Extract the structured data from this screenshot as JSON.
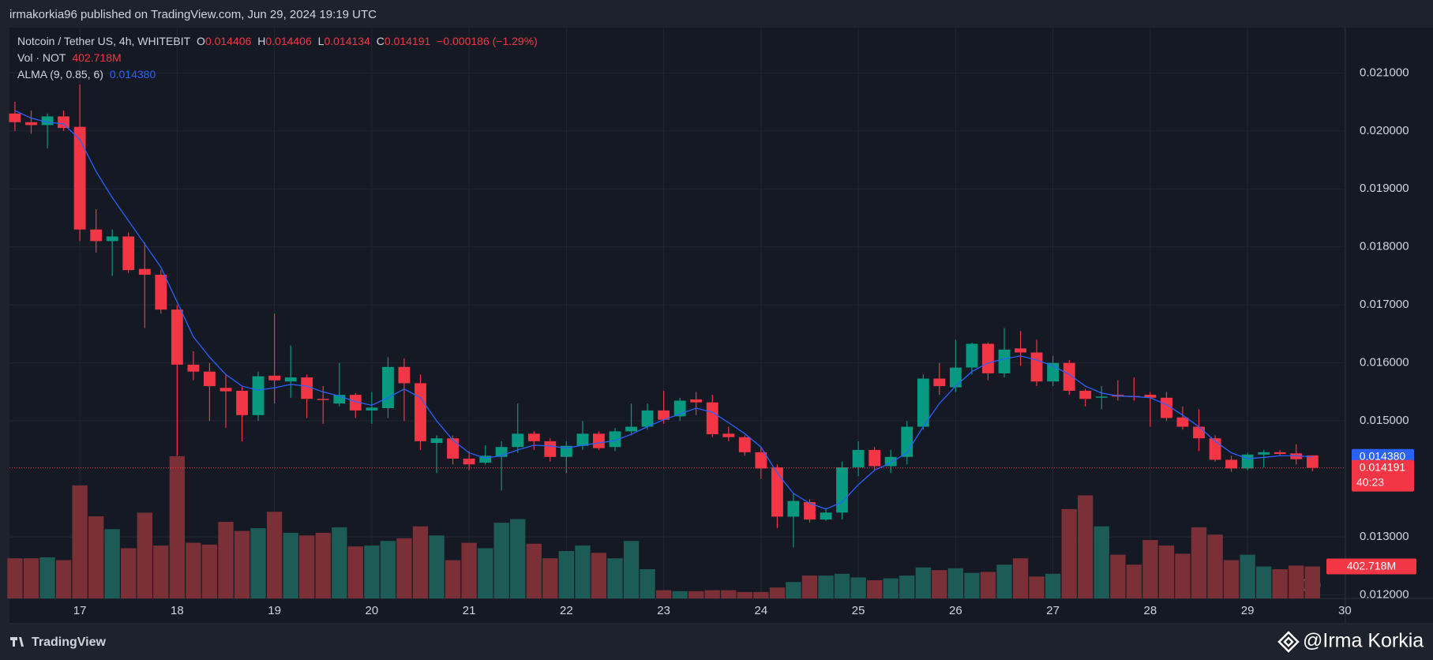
{
  "header": {
    "published": "irmakorkia96 published on TradingView.com, Jun 29, 2024 19:19 UTC"
  },
  "footer": {
    "brand": "TradingView",
    "watermark": "@Irma Korkia"
  },
  "chart_data": {
    "type": "candlestick",
    "title": "Notcoin / Tether US, 4h, WHITEBIT",
    "ohlc_letters": [
      "O",
      "H",
      "L",
      "C"
    ],
    "change_label": "−0.000186 (−1.29%)",
    "countdown": "40:23",
    "up_color": "#089981",
    "down_color": "#f23645",
    "xlim": [
      16.277,
      30.005
    ],
    "xticks": [
      17,
      18,
      19,
      20,
      21,
      22,
      23,
      24,
      25,
      26,
      27,
      28,
      29,
      30
    ],
    "ylim": [
      0.01194,
      0.02178
    ],
    "yticks": [
      {
        "value": 0.012,
        "label": "0.012000"
      },
      {
        "value": 0.013,
        "label": "0.013000"
      },
      {
        "value": 0.015,
        "label": "0.015000"
      },
      {
        "value": 0.016,
        "label": "0.016000"
      },
      {
        "value": 0.017,
        "label": "0.017000"
      },
      {
        "value": 0.018,
        "label": "0.018000"
      },
      {
        "value": 0.019,
        "label": "0.019000"
      },
      {
        "value": 0.02,
        "label": "0.020000"
      },
      {
        "value": 0.021,
        "label": "0.021000"
      }
    ],
    "grid": true,
    "x": [
      16.333,
      16.5,
      16.667,
      16.833,
      17,
      17.167,
      17.333,
      17.5,
      17.667,
      17.833,
      18,
      18.167,
      18.333,
      18.5,
      18.667,
      18.833,
      19,
      19.167,
      19.333,
      19.5,
      19.667,
      19.833,
      20,
      20.167,
      20.333,
      20.5,
      20.667,
      20.833,
      21,
      21.167,
      21.333,
      21.5,
      21.667,
      21.833,
      22,
      22.167,
      22.333,
      22.5,
      22.667,
      22.833,
      23,
      23.167,
      23.333,
      23.5,
      23.667,
      23.833,
      24,
      24.167,
      24.333,
      24.5,
      24.667,
      24.833,
      25,
      25.167,
      25.333,
      25.5,
      25.667,
      25.833,
      26,
      26.167,
      26.333,
      26.5,
      26.667,
      26.833,
      27,
      27.167,
      27.333,
      27.5,
      27.667,
      27.833,
      28,
      28.167,
      28.333,
      28.5,
      28.667,
      28.833,
      29,
      29.167,
      29.333,
      29.5,
      29.667
    ],
    "open": [
      0.0203,
      0.02015,
      0.0201,
      0.02025,
      0.02007,
      0.0183,
      0.0181,
      0.01818,
      0.01762,
      0.01752,
      0.01692,
      0.01597,
      0.01585,
      0.01557,
      0.01552,
      0.0151,
      0.01578,
      0.01568,
      0.01575,
      0.01538,
      0.0153,
      0.01545,
      0.01518,
      0.01522,
      0.01593,
      0.01565,
      0.01462,
      0.0147,
      0.01435,
      0.01428,
      0.01438,
      0.01455,
      0.01478,
      0.01465,
      0.01438,
      0.01457,
      0.01478,
      0.01455,
      0.01482,
      0.0149,
      0.01518,
      0.01508,
      0.01537,
      0.01532,
      0.01478,
      0.01472,
      0.01446,
      0.0142,
      0.01335,
      0.0136,
      0.0133,
      0.01342,
      0.0142,
      0.0145,
      0.01422,
      0.01438,
      0.0149,
      0.01573,
      0.01558,
      0.01592,
      0.01633,
      0.01582,
      0.01625,
      0.01618,
      0.01568,
      0.016,
      0.01552,
      0.0154,
      0.01545,
      0.01543,
      0.01545,
      0.0154,
      0.01506,
      0.0149,
      0.0147,
      0.01433,
      0.01418,
      0.01442,
      0.01446,
      0.01444,
      0.014406
    ],
    "high": [
      0.0205,
      0.02035,
      0.0203,
      0.02035,
      0.0208,
      0.01865,
      0.0183,
      0.01825,
      0.01808,
      0.0176,
      0.017,
      0.0162,
      0.016,
      0.0158,
      0.0156,
      0.01585,
      0.01685,
      0.0163,
      0.0158,
      0.0156,
      0.016,
      0.01548,
      0.0155,
      0.0161,
      0.01608,
      0.0158,
      0.01475,
      0.01475,
      0.01448,
      0.01458,
      0.01465,
      0.0153,
      0.01482,
      0.0147,
      0.01465,
      0.015,
      0.01482,
      0.01488,
      0.0153,
      0.0153,
      0.01552,
      0.0154,
      0.0155,
      0.01545,
      0.0149,
      0.01475,
      0.01455,
      0.01425,
      0.01375,
      0.01365,
      0.0135,
      0.0143,
      0.01465,
      0.01455,
      0.0145,
      0.015,
      0.0158,
      0.016,
      0.0164,
      0.01635,
      0.01635,
      0.0166,
      0.01655,
      0.0164,
      0.01612,
      0.01605,
      0.01555,
      0.0156,
      0.0157,
      0.01575,
      0.0155,
      0.0155,
      0.01525,
      0.0152,
      0.01475,
      0.0144,
      0.01445,
      0.0145,
      0.0145,
      0.0146,
      0.014406
    ],
    "low": [
      0.02,
      0.01995,
      0.0197,
      0.02,
      0.0181,
      0.0179,
      0.0175,
      0.01755,
      0.0166,
      0.01685,
      0.0144,
      0.0157,
      0.015,
      0.01488,
      0.01465,
      0.015,
      0.0153,
      0.0154,
      0.01505,
      0.01495,
      0.01525,
      0.01505,
      0.01495,
      0.01505,
      0.015,
      0.0145,
      0.0141,
      0.01425,
      0.01415,
      0.01425,
      0.0138,
      0.01445,
      0.0145,
      0.0143,
      0.0141,
      0.0145,
      0.0145,
      0.01448,
      0.01475,
      0.01485,
      0.01495,
      0.015,
      0.0151,
      0.01472,
      0.01465,
      0.0144,
      0.014,
      0.01315,
      0.01282,
      0.01325,
      0.01328,
      0.0133,
      0.01405,
      0.01415,
      0.0141,
      0.01425,
      0.01485,
      0.01545,
      0.0155,
      0.0158,
      0.0157,
      0.01575,
      0.01595,
      0.0156,
      0.0156,
      0.01545,
      0.01525,
      0.0152,
      0.01535,
      0.01535,
      0.0149,
      0.015,
      0.01485,
      0.01448,
      0.0143,
      0.01412,
      0.01415,
      0.0142,
      0.0144,
      0.01425,
      0.014134
    ],
    "close": [
      0.02015,
      0.0201,
      0.02025,
      0.02005,
      0.0183,
      0.0181,
      0.01818,
      0.0176,
      0.01752,
      0.01692,
      0.01597,
      0.01585,
      0.0156,
      0.01551,
      0.0151,
      0.01577,
      0.0157,
      0.01575,
      0.01538,
      0.01536,
      0.01545,
      0.01518,
      0.01523,
      0.01593,
      0.01565,
      0.01465,
      0.0147,
      0.01435,
      0.01425,
      0.0144,
      0.01455,
      0.01478,
      0.01465,
      0.01438,
      0.01457,
      0.01478,
      0.01453,
      0.01482,
      0.0149,
      0.01518,
      0.01502,
      0.01535,
      0.01532,
      0.01477,
      0.01472,
      0.01446,
      0.01418,
      0.01335,
      0.01362,
      0.0133,
      0.01342,
      0.0142,
      0.0145,
      0.01422,
      0.01438,
      0.0149,
      0.01573,
      0.0156,
      0.01592,
      0.01633,
      0.01582,
      0.01623,
      0.01618,
      0.01568,
      0.016,
      0.01552,
      0.01538,
      0.01542,
      0.01542,
      0.01542,
      0.0154,
      0.01505,
      0.0149,
      0.0147,
      0.01433,
      0.01418,
      0.01442,
      0.01446,
      0.01443,
      0.01434,
      0.014191
    ],
    "volume": {
      "name": "Vol · NOT",
      "up_color": "#1d5b56",
      "down_color": "#7a3036",
      "ylim": [
        0,
        7200
      ],
      "last_label": "402.718M",
      "values": [
        506,
        506,
        518,
        483,
        1426,
        1035,
        874,
        633,
        1081,
        667,
        1794,
        702,
        679,
        966,
        851,
        886,
        1093,
        828,
        794,
        828,
        897,
        656,
        667,
        725,
        759,
        909,
        794,
        483,
        702,
        633,
        955,
        1001,
        690,
        506,
        598,
        667,
        575,
        506,
        725,
        368,
        104,
        92,
        92,
        104,
        104,
        81,
        81,
        138,
        207,
        288,
        288,
        311,
        265,
        230,
        253,
        288,
        391,
        357,
        380,
        322,
        334,
        426,
        506,
        276,
        311,
        1127,
        1300,
        909,
        552,
        426,
        736,
        667,
        564,
        897,
        805,
        483,
        552,
        403,
        368,
        414,
        402.718
      ]
    },
    "alma": {
      "name": "ALMA (9, 0.85, 6)",
      "color": "#2962ff",
      "last_label": "0.014380",
      "values": [
        0.02035,
        0.02022,
        0.02015,
        0.02012,
        0.01985,
        0.0193,
        0.01885,
        0.01845,
        0.01805,
        0.01765,
        0.01705,
        0.01645,
        0.0161,
        0.0158,
        0.0156,
        0.01553,
        0.01557,
        0.01563,
        0.0156,
        0.0155,
        0.01543,
        0.01533,
        0.01527,
        0.0154,
        0.01555,
        0.0154,
        0.015,
        0.01467,
        0.01445,
        0.01436,
        0.0144,
        0.0145,
        0.01458,
        0.01457,
        0.01453,
        0.01458,
        0.01462,
        0.01466,
        0.01477,
        0.0149,
        0.01502,
        0.01512,
        0.01522,
        0.01515,
        0.01497,
        0.01478,
        0.01455,
        0.0141,
        0.01375,
        0.01358,
        0.01348,
        0.0136,
        0.0139,
        0.01415,
        0.01428,
        0.01445,
        0.0149,
        0.0153,
        0.0156,
        0.01585,
        0.016,
        0.01607,
        0.01612,
        0.01605,
        0.01595,
        0.0158,
        0.0156,
        0.01548,
        0.01543,
        0.01542,
        0.0154,
        0.01528,
        0.0151,
        0.0149,
        0.01465,
        0.01445,
        0.01435,
        0.01437,
        0.0144,
        0.0144,
        0.01438
      ]
    }
  }
}
